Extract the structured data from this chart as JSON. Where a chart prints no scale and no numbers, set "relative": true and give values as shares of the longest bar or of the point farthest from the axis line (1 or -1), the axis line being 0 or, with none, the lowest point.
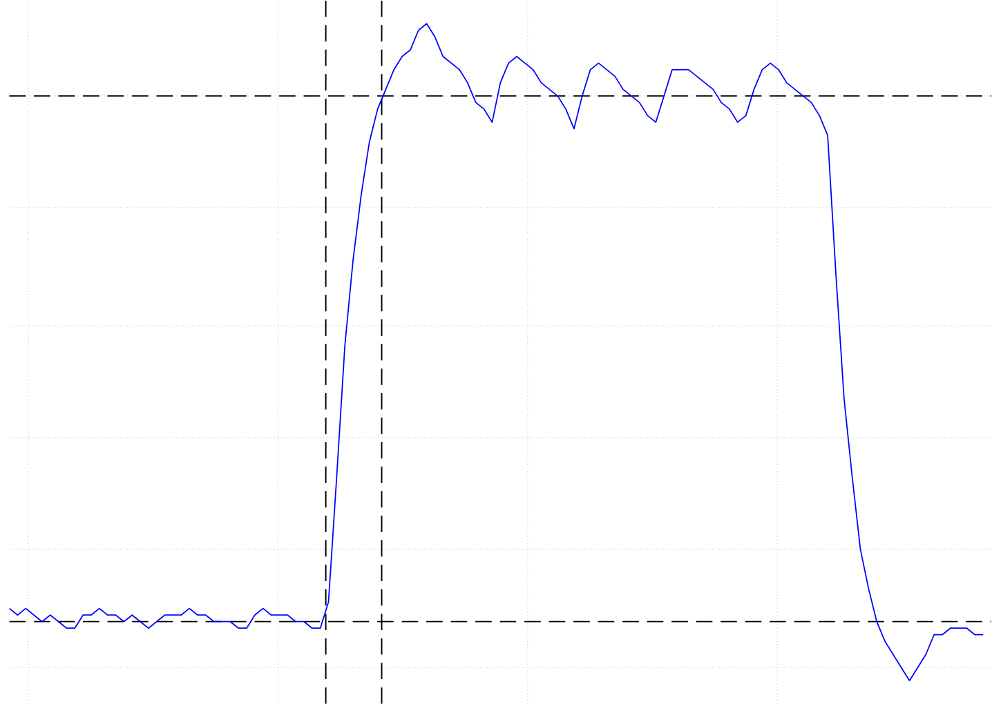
{
  "chart_data": {
    "type": "line",
    "relative": true,
    "grid": true,
    "categories": [
      null,
      null,
      null,
      null,
      null,
      null,
      null,
      null,
      null,
      null,
      null,
      null,
      null,
      null,
      null,
      null,
      null,
      null,
      null,
      null,
      null,
      null,
      null,
      null,
      null,
      null,
      null,
      null,
      null,
      null,
      null,
      null,
      null,
      null,
      null,
      null,
      null,
      null,
      null,
      null,
      null,
      null,
      null,
      null,
      null,
      null,
      null,
      null,
      null,
      null,
      null,
      null,
      null,
      null,
      null,
      null,
      null,
      null,
      null,
      null,
      null,
      null,
      null,
      null,
      null,
      null,
      null,
      null,
      null,
      null,
      null,
      null,
      null,
      null,
      null,
      null,
      null,
      null,
      null,
      null,
      null,
      null,
      null,
      null,
      null,
      null,
      null,
      null,
      null,
      null,
      null,
      null,
      null,
      null,
      null,
      null,
      null,
      null,
      null,
      null,
      null,
      null,
      null,
      null,
      null,
      null,
      null,
      null,
      null,
      null,
      null,
      null,
      null,
      null,
      null,
      null,
      null,
      null,
      null,
      null
    ],
    "series": [
      {
        "color": "#0000ff",
        "values": [
          0.11,
          0.1,
          0.11,
          0.1,
          0.09,
          0.1,
          0.09,
          0.08,
          0.08,
          0.1,
          0.1,
          0.11,
          0.1,
          0.1,
          0.09,
          0.1,
          0.09,
          0.08,
          0.09,
          0.1,
          0.1,
          0.1,
          0.11,
          0.1,
          0.1,
          0.09,
          0.09,
          0.09,
          0.08,
          0.08,
          0.1,
          0.11,
          0.1,
          0.1,
          0.1,
          0.09,
          0.09,
          0.08,
          0.08,
          0.12,
          0.31,
          0.51,
          0.64,
          0.74,
          0.82,
          0.87,
          0.9,
          0.93,
          0.95,
          0.96,
          0.99,
          1.0,
          0.98,
          0.95,
          0.94,
          0.93,
          0.91,
          0.88,
          0.87,
          0.85,
          0.91,
          0.94,
          0.95,
          0.94,
          0.93,
          0.91,
          0.9,
          0.89,
          0.87,
          0.84,
          0.89,
          0.93,
          0.94,
          0.93,
          0.92,
          0.9,
          0.89,
          0.88,
          0.86,
          0.85,
          0.89,
          0.93,
          0.93,
          0.93,
          0.92,
          0.91,
          0.9,
          0.88,
          0.87,
          0.85,
          0.86,
          0.9,
          0.93,
          0.94,
          0.93,
          0.91,
          0.9,
          0.89,
          0.88,
          0.86,
          0.83,
          0.62,
          0.43,
          0.31,
          0.2,
          0.14,
          0.09,
          0.06,
          0.04,
          0.02,
          0.0,
          0.02,
          0.04,
          0.07,
          0.07,
          0.08,
          0.08,
          0.08,
          0.07,
          0.07
        ]
      }
    ],
    "ref_lines": [
      {
        "axis": "y",
        "value": 0.89,
        "color": "#000000",
        "line_style": "dashed"
      },
      {
        "axis": "y",
        "value": 0.09,
        "color": "#000000",
        "line_style": "dashed"
      }
    ]
  }
}
